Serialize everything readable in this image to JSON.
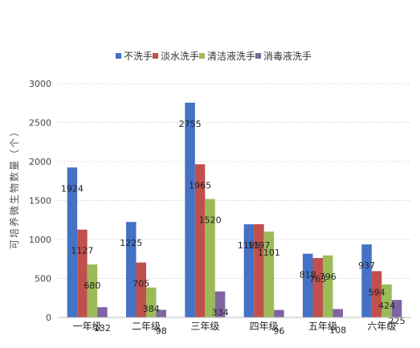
{
  "chart_data": {
    "type": "bar",
    "ylabel": "可培养微生物数量（个）",
    "ylim": [
      0,
      3000
    ],
    "yticks": [
      "0",
      "500",
      "1000",
      "1500",
      "2000",
      "2500",
      "3000"
    ],
    "categories": [
      "一年级",
      "二年级",
      "三年级",
      "四年级",
      "五年级",
      "六年级"
    ],
    "legend_position": "top",
    "grid": true,
    "series": [
      {
        "name": "不洗手",
        "color": "#4472C4",
        "values": [
          1924,
          1225,
          2755,
          1195,
          818,
          937
        ],
        "labels": [
          "1924",
          "1225",
          "2755",
          "1195",
          "818",
          "937"
        ]
      },
      {
        "name": "淡水洗手",
        "color": "#C0504D",
        "values": [
          1127,
          705,
          1965,
          1197,
          763,
          594
        ],
        "labels": [
          "1127",
          "705",
          "1965",
          "1197",
          "763",
          "594"
        ]
      },
      {
        "name": "清洁液洗手",
        "color": "#9BBB59",
        "values": [
          680,
          384,
          1520,
          1101,
          796,
          424
        ],
        "labels": [
          "680",
          "384",
          "1520",
          "1101",
          "796",
          "424"
        ]
      },
      {
        "name": "消毒液洗手",
        "color": "#8064A2",
        "values": [
          132,
          98,
          334,
          96,
          108,
          225
        ],
        "labels": [
          "132",
          "98",
          "334",
          "96",
          "108",
          "225"
        ]
      }
    ]
  }
}
